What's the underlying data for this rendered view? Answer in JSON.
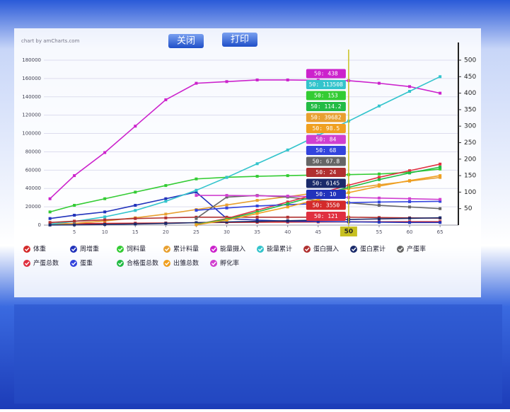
{
  "toolbar": {
    "close": "关闭",
    "print": "打印"
  },
  "chart_data": {
    "type": "line",
    "credit": "chart by amCharts.com",
    "x": [
      1,
      5,
      10,
      15,
      20,
      25,
      30,
      35,
      40,
      45,
      50,
      55,
      60,
      65
    ],
    "xlim": [
      0,
      68
    ],
    "xticks": [
      5,
      10,
      15,
      20,
      25,
      30,
      35,
      40,
      45,
      50,
      55,
      60,
      65
    ],
    "ylim": [
      0,
      180000
    ],
    "yticks": [
      0,
      20000,
      40000,
      60000,
      80000,
      100000,
      120000,
      140000,
      160000,
      180000
    ],
    "y2lim": [
      0,
      500
    ],
    "y2ticks": [
      50,
      100,
      150,
      200,
      250,
      300,
      350,
      400,
      450,
      500
    ],
    "grid": true,
    "cursor": 10,
    "series": [
      {
        "name": "体重",
        "color": "#d42a2a",
        "values": [
          1500,
          1700,
          1900,
          2100,
          2300,
          2600,
          2900,
          3100,
          3300,
          3450,
          3550,
          3620,
          3680,
          3720
        ],
        "value_labels": [
          null,
          null,
          null,
          null,
          null,
          null,
          null,
          null,
          null,
          null,
          "50: 3550",
          null,
          null,
          null
        ]
      },
      {
        "name": "周增重",
        "color": "#2233bb",
        "axis": "y2",
        "values": [
          20,
          30,
          40,
          60,
          80,
          100,
          20,
          15,
          12,
          11,
          10,
          9,
          8,
          8
        ],
        "value_labels": [
          null,
          null,
          null,
          null,
          null,
          null,
          null,
          null,
          null,
          null,
          "50: 10",
          null,
          null,
          null
        ]
      },
      {
        "name": "饲料量",
        "color": "#33cc33",
        "axis": "y2",
        "values": [
          40,
          60,
          80,
          100,
          120,
          140,
          145,
          148,
          150,
          152,
          153,
          155,
          160,
          170
        ],
        "value_labels": [
          null,
          null,
          null,
          null,
          null,
          null,
          null,
          null,
          null,
          null,
          "50: 153",
          null,
          null,
          null
        ]
      },
      {
        "name": "累计料量",
        "color": "#e8a030",
        "values": [
          500,
          2000,
          4500,
          8000,
          12000,
          17000,
          22000,
          27000,
          31000,
          35500,
          39682,
          44000,
          48000,
          52000
        ],
        "value_labels": [
          null,
          null,
          null,
          null,
          null,
          null,
          null,
          null,
          null,
          null,
          "50: 39682",
          null,
          null,
          null
        ]
      },
      {
        "name": "能量摄入",
        "color": "#cc22cc",
        "axis": "y2",
        "values": [
          80,
          150,
          220,
          300,
          380,
          430,
          435,
          440,
          440,
          439,
          438,
          430,
          420,
          400
        ],
        "value_labels": [
          null,
          null,
          null,
          null,
          null,
          null,
          null,
          null,
          null,
          null,
          "50: 438",
          null,
          null,
          null
        ]
      },
      {
        "name": "能量累计",
        "color": "#33c4cc",
        "values": [
          1000,
          4000,
          9000,
          16000,
          26000,
          38000,
          52000,
          67000,
          82000,
          98000,
          113508,
          130000,
          146000,
          162000
        ],
        "value_labels": [
          null,
          null,
          null,
          null,
          null,
          null,
          null,
          null,
          null,
          null,
          "50: 113508",
          null,
          null,
          null
        ]
      },
      {
        "name": "蛋白摄入",
        "color": "#b03030",
        "axis": "y2",
        "values": [
          8,
          12,
          16,
          20,
          22,
          24,
          24,
          24,
          24,
          24,
          24,
          23,
          22,
          21
        ],
        "value_labels": [
          null,
          null,
          null,
          null,
          null,
          null,
          null,
          null,
          null,
          null,
          "50: 24",
          null,
          null,
          null
        ]
      },
      {
        "name": "蛋白累计",
        "color": "#1a2a6a",
        "values": [
          100,
          300,
          700,
          1200,
          1900,
          2700,
          3400,
          4100,
          4800,
          5500,
          6145,
          6800,
          7400,
          8000
        ],
        "value_labels": [
          null,
          null,
          null,
          null,
          null,
          null,
          null,
          null,
          null,
          null,
          "50: 6145",
          null,
          null,
          null
        ]
      },
      {
        "name": "产蛋率",
        "color": "#666666",
        "axis": "y2",
        "values": [
          null,
          null,
          null,
          null,
          null,
          20,
          85,
          90,
          85,
          75,
          67.8,
          60,
          55,
          50
        ],
        "value_labels": [
          null,
          null,
          null,
          null,
          null,
          null,
          null,
          null,
          null,
          null,
          "50: 67.8",
          null,
          null,
          null
        ]
      },
      {
        "name": "产蛋总数",
        "color": "#e03040",
        "axis": "y2",
        "values": [
          null,
          null,
          null,
          null,
          null,
          2,
          20,
          45,
          70,
          95,
          121,
          145,
          165,
          185
        ],
        "value_labels": [
          null,
          null,
          null,
          null,
          null,
          null,
          null,
          null,
          null,
          null,
          "50: 121",
          null,
          null,
          null
        ]
      },
      {
        "name": "蛋重",
        "color": "#3344dd",
        "axis": "y2",
        "values": [
          null,
          null,
          null,
          null,
          null,
          45,
          52,
          58,
          62,
          65,
          68,
          70,
          71,
          72
        ],
        "value_labels": [
          null,
          null,
          null,
          null,
          null,
          null,
          null,
          null,
          null,
          null,
          "50: 68",
          null,
          null,
          null
        ]
      },
      {
        "name": "合格蛋总数",
        "color": "#22bb44",
        "axis": "y2",
        "values": [
          null,
          null,
          null,
          null,
          null,
          2,
          18,
          40,
          65,
          90,
          114.2,
          138,
          158,
          176
        ],
        "value_labels": [
          null,
          null,
          null,
          null,
          null,
          null,
          null,
          null,
          null,
          null,
          "50: 114.2",
          null,
          null,
          null
        ]
      },
      {
        "name": "出雏总数",
        "color": "#f0a020",
        "axis": "y2",
        "values": [
          null,
          null,
          null,
          null,
          null,
          1,
          15,
          35,
          55,
          78,
          98.5,
          118,
          135,
          150
        ],
        "value_labels": [
          null,
          null,
          null,
          null,
          null,
          null,
          null,
          null,
          null,
          null,
          "50: 98.5",
          null,
          null,
          null
        ]
      },
      {
        "name": "孵化率",
        "color": "#d040d0",
        "axis": "y2",
        "values": [
          null,
          null,
          null,
          null,
          null,
          90,
          90,
          89,
          88,
          86,
          84,
          82,
          80,
          78
        ],
        "value_labels": [
          null,
          null,
          null,
          null,
          null,
          null,
          null,
          null,
          null,
          null,
          "50: 84",
          null,
          null,
          null
        ]
      }
    ]
  }
}
